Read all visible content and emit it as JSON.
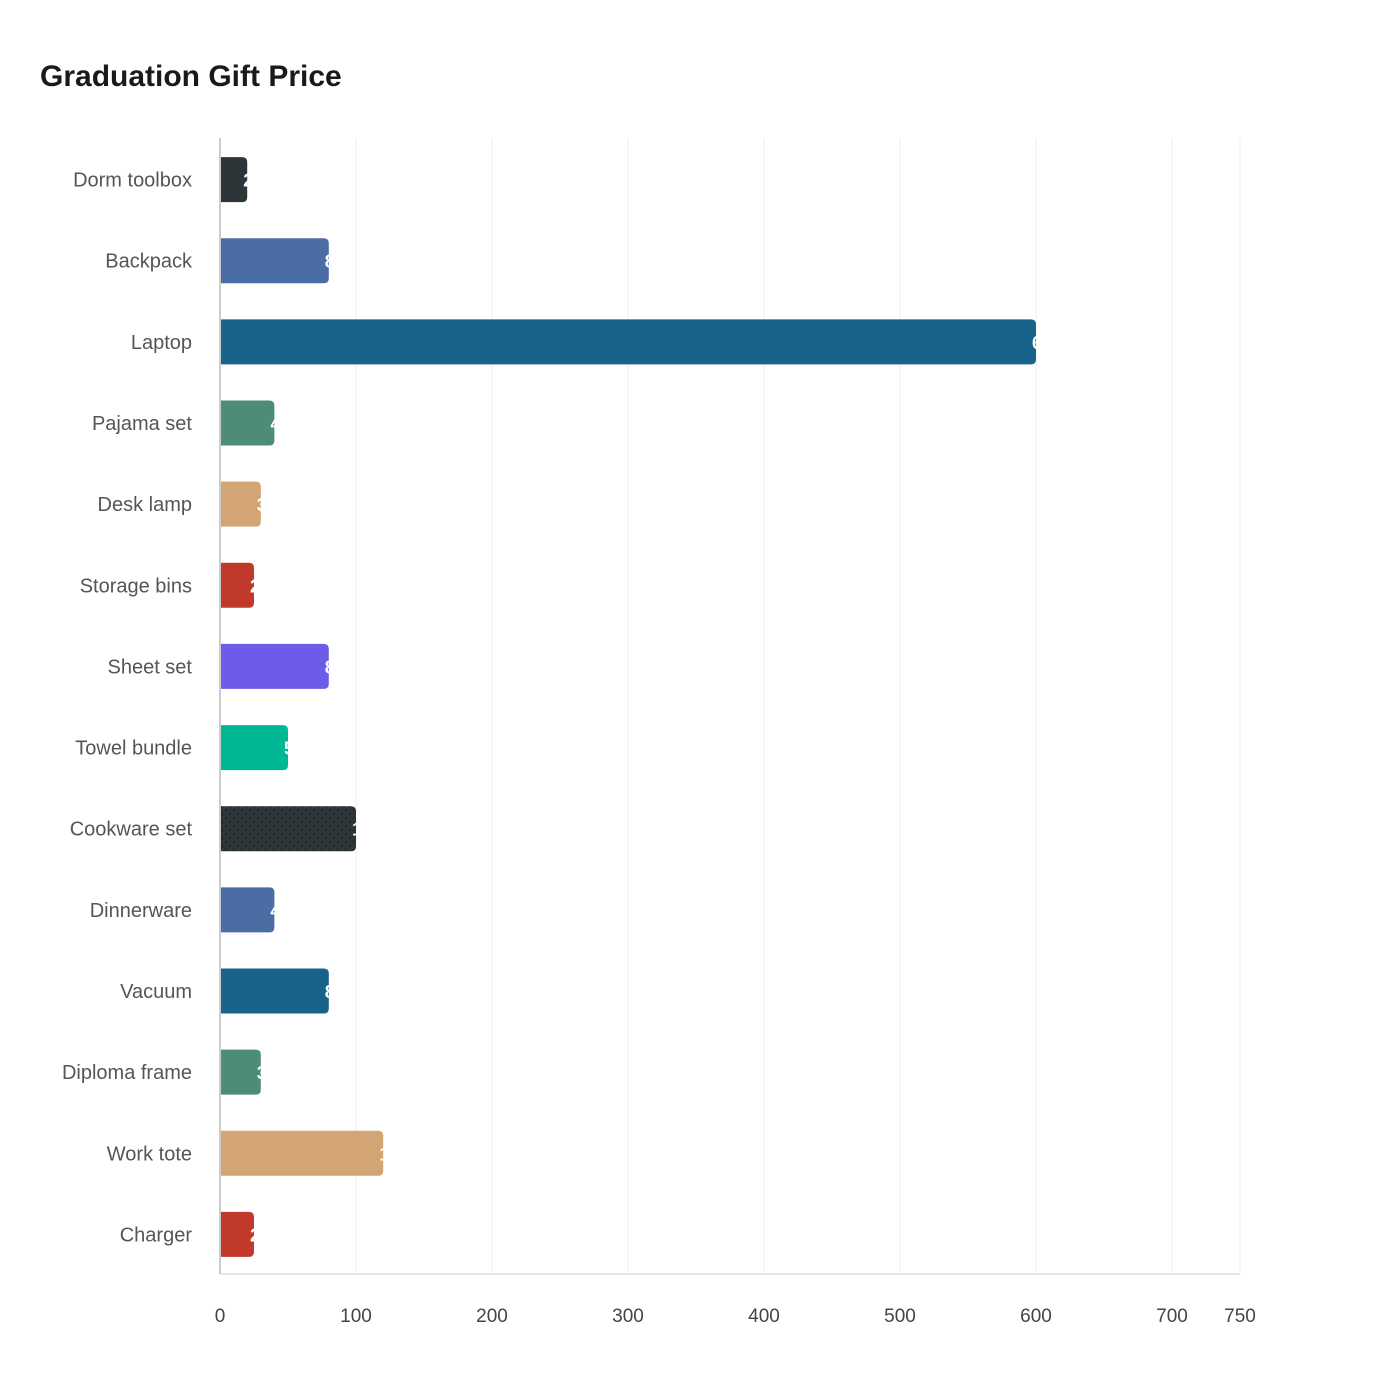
{
  "chart_data": {
    "type": "bar",
    "orientation": "horizontal",
    "title": "Graduation Gift Price",
    "xlabel": "",
    "ylabel": "",
    "xlim": [
      0,
      750
    ],
    "x_ticks": [
      0,
      100,
      200,
      300,
      400,
      500,
      600,
      700,
      750
    ],
    "grid": "vertical",
    "categories": [
      "Dorm toolbox",
      "Backpack",
      "Laptop",
      "Pajama set",
      "Desk lamp",
      "Storage bins",
      "Sheet set",
      "Towel bundle",
      "Cookware set",
      "Dinnerware",
      "Vacuum",
      "Diploma frame",
      "Work tote",
      "Charger"
    ],
    "values": [
      20,
      80,
      600,
      40,
      30,
      25,
      80,
      50,
      100,
      40,
      80,
      30,
      120,
      25
    ],
    "colors": [
      "#2e3538",
      "#4a6ea3",
      "#186389",
      "#4d8c79",
      "#d4a574",
      "#c0392b",
      "#6c5ce7",
      "#00b894",
      "#2e3538",
      "#4a6ea3",
      "#186389",
      "#4d8c79",
      "#d4a574",
      "#c0392b"
    ],
    "patterned": [
      "Cookware set"
    ]
  }
}
